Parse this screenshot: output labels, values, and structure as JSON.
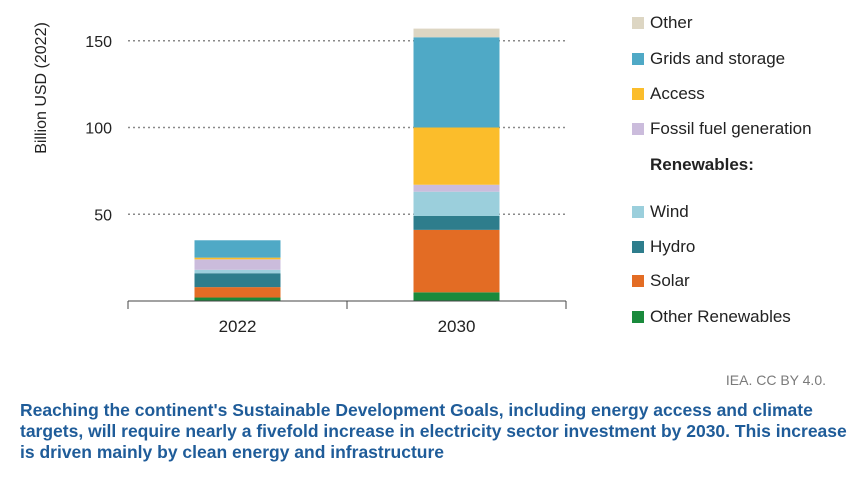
{
  "chart_data": {
    "type": "bar",
    "stacked": true,
    "categories": [
      "2022",
      "2030"
    ],
    "ylabel": "Billion USD (2022)",
    "yticks": [
      50,
      100,
      150
    ],
    "ylim": [
      0,
      160
    ],
    "grid": "horizontal dotted",
    "legend_placement": "right",
    "series": [
      {
        "name": "Other Renewables",
        "color": "#1a8a3c",
        "values": [
          2,
          5
        ]
      },
      {
        "name": "Solar",
        "color": "#e36c24",
        "values": [
          6,
          36
        ]
      },
      {
        "name": "Hydro",
        "color": "#2e7d8c",
        "values": [
          8,
          8
        ]
      },
      {
        "name": "Wind",
        "color": "#9bcfdc",
        "values": [
          2,
          14
        ]
      },
      {
        "name": "Fossil fuel generation",
        "color": "#cbbcdc",
        "values": [
          6,
          4
        ]
      },
      {
        "name": "Access",
        "color": "#fbbd2b",
        "values": [
          1,
          33
        ]
      },
      {
        "name": "Grids and storage",
        "color": "#4fa9c6",
        "values": [
          10,
          52
        ]
      },
      {
        "name": "Other",
        "color": "#ddd6c3",
        "values": [
          0,
          5
        ]
      }
    ]
  },
  "legend": {
    "items": [
      {
        "label": "Other",
        "color": "#ddd6c3"
      },
      {
        "label": "Grids and storage",
        "color": "#4fa9c6"
      },
      {
        "label": "Access",
        "color": "#fbbd2b"
      },
      {
        "label": "Fossil fuel generation",
        "color": "#cbbcdc"
      },
      {
        "label": "Wind",
        "color": "#9bcfdc"
      },
      {
        "label": "Hydro",
        "color": "#2e7d8c"
      },
      {
        "label": "Solar",
        "color": "#e36c24"
      },
      {
        "label": "Other Renewables",
        "color": "#1a8a3c"
      }
    ],
    "renewables_heading": "Renewables:"
  },
  "credit": "IEA. CC BY 4.0.",
  "caption": "Reaching the continent's Sustainable Development Goals, including energy access and climate targets, will require nearly a fivefold increase in electricity sector investment by 2030. This increase is driven mainly by clean energy and infrastructure"
}
